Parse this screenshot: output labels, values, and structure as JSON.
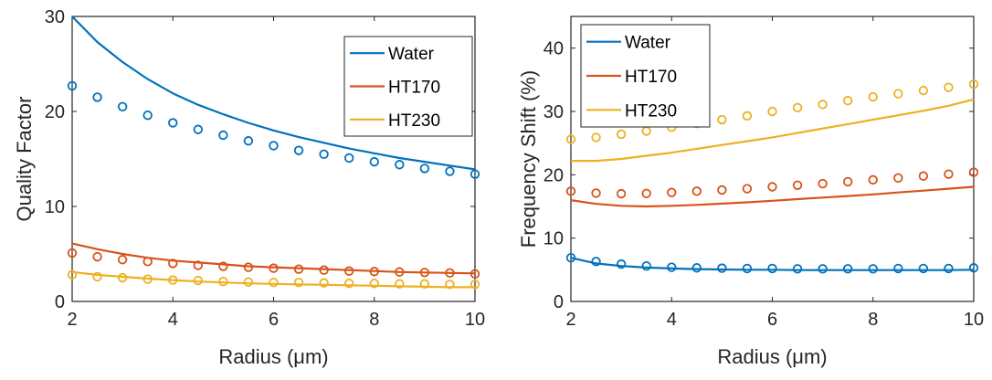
{
  "chart_data": [
    {
      "type": "line",
      "xlabel": "Radius (μm)",
      "ylabel": "Quality Factor",
      "xlim": [
        2,
        10
      ],
      "ylim": [
        0,
        30
      ],
      "xticks": [
        2,
        4,
        6,
        8,
        10
      ],
      "yticks": [
        0,
        10,
        20,
        30
      ],
      "grid": false,
      "legend": "top-right",
      "series": [
        {
          "name": "Water",
          "color": "#0072BD",
          "line_x": [
            2,
            2.5,
            3,
            3.5,
            4,
            4.5,
            5,
            5.5,
            6,
            6.5,
            7,
            7.5,
            8,
            8.5,
            9,
            9.5,
            10
          ],
          "line_y": [
            30,
            27.3,
            25.2,
            23.4,
            21.9,
            20.7,
            19.7,
            18.8,
            18.0,
            17.3,
            16.7,
            16.1,
            15.6,
            15.1,
            14.7,
            14.3,
            13.9
          ],
          "marker_x": [
            2,
            2.5,
            3,
            3.5,
            4,
            4.5,
            5,
            5.5,
            6,
            6.5,
            7,
            7.5,
            8,
            8.5,
            9,
            9.5,
            10
          ],
          "marker_y": [
            22.7,
            21.5,
            20.5,
            19.6,
            18.8,
            18.1,
            17.5,
            16.9,
            16.4,
            15.9,
            15.5,
            15.1,
            14.7,
            14.4,
            14.0,
            13.7,
            13.4
          ]
        },
        {
          "name": "HT170",
          "color": "#D95319",
          "line_x": [
            2,
            2.5,
            3,
            3.5,
            4,
            4.5,
            5,
            5.5,
            6,
            6.5,
            7,
            7.5,
            8,
            8.5,
            9,
            9.5,
            10
          ],
          "line_y": [
            6.1,
            5.5,
            5.0,
            4.6,
            4.3,
            4.1,
            3.9,
            3.7,
            3.6,
            3.5,
            3.4,
            3.3,
            3.2,
            3.1,
            3.05,
            3.0,
            2.95
          ],
          "marker_x": [
            2,
            2.5,
            3,
            3.5,
            4,
            4.5,
            5,
            5.5,
            6,
            6.5,
            7,
            7.5,
            8,
            8.5,
            9,
            9.5,
            10
          ],
          "marker_y": [
            5.1,
            4.7,
            4.4,
            4.2,
            4.0,
            3.8,
            3.7,
            3.6,
            3.5,
            3.4,
            3.3,
            3.2,
            3.15,
            3.1,
            3.05,
            3.0,
            2.9
          ]
        },
        {
          "name": "HT230",
          "color": "#EDB120",
          "line_x": [
            2,
            2.5,
            3,
            3.5,
            4,
            4.5,
            5,
            5.5,
            6,
            6.5,
            7,
            7.5,
            8,
            8.5,
            9,
            9.5,
            10
          ],
          "line_y": [
            3.1,
            2.8,
            2.6,
            2.4,
            2.25,
            2.1,
            2.0,
            1.9,
            1.85,
            1.8,
            1.75,
            1.7,
            1.65,
            1.6,
            1.55,
            1.5,
            1.5
          ],
          "marker_x": [
            2,
            2.5,
            3,
            3.5,
            4,
            4.5,
            5,
            5.5,
            6,
            6.5,
            7,
            7.5,
            8,
            8.5,
            9,
            9.5,
            10
          ],
          "marker_y": [
            2.8,
            2.6,
            2.5,
            2.35,
            2.25,
            2.2,
            2.1,
            2.05,
            2.0,
            2.0,
            1.95,
            1.9,
            1.9,
            1.85,
            1.85,
            1.8,
            1.8
          ]
        }
      ]
    },
    {
      "type": "line",
      "xlabel": "Radius (μm)",
      "ylabel": "Frequency Shift (%)",
      "xlim": [
        2,
        10
      ],
      "ylim": [
        0,
        45
      ],
      "xticks": [
        2,
        4,
        6,
        8,
        10
      ],
      "yticks": [
        0,
        10,
        20,
        30,
        40
      ],
      "grid": false,
      "legend": "top-left",
      "series": [
        {
          "name": "Water",
          "color": "#0072BD",
          "line_x": [
            2,
            2.5,
            3,
            3.5,
            4,
            4.5,
            5,
            5.5,
            6,
            6.5,
            7,
            7.5,
            8,
            8.5,
            9,
            9.5,
            10
          ],
          "line_y": [
            6.9,
            6.0,
            5.6,
            5.35,
            5.2,
            5.1,
            5.05,
            5.0,
            5.0,
            4.95,
            4.95,
            4.95,
            4.95,
            4.95,
            4.95,
            4.95,
            5.0
          ],
          "marker_x": [
            2,
            2.5,
            3,
            3.5,
            4,
            4.5,
            5,
            5.5,
            6,
            6.5,
            7,
            7.5,
            8,
            8.5,
            9,
            9.5,
            10
          ],
          "marker_y": [
            6.9,
            6.3,
            5.9,
            5.6,
            5.4,
            5.3,
            5.25,
            5.2,
            5.2,
            5.15,
            5.15,
            5.15,
            5.15,
            5.2,
            5.2,
            5.2,
            5.3
          ]
        },
        {
          "name": "HT170",
          "color": "#D95319",
          "line_x": [
            2,
            2.5,
            3,
            3.5,
            4,
            4.5,
            5,
            5.5,
            6,
            6.5,
            7,
            7.5,
            8,
            8.5,
            9,
            9.5,
            10
          ],
          "line_y": [
            16.0,
            15.4,
            15.1,
            15.0,
            15.1,
            15.25,
            15.45,
            15.65,
            15.9,
            16.15,
            16.4,
            16.65,
            16.9,
            17.2,
            17.5,
            17.8,
            18.1
          ],
          "marker_x": [
            2,
            2.5,
            3,
            3.5,
            4,
            4.5,
            5,
            5.5,
            6,
            6.5,
            7,
            7.5,
            8,
            8.5,
            9,
            9.5,
            10
          ],
          "marker_y": [
            17.4,
            17.1,
            17.0,
            17.05,
            17.2,
            17.4,
            17.6,
            17.8,
            18.1,
            18.35,
            18.6,
            18.9,
            19.2,
            19.5,
            19.8,
            20.1,
            20.4
          ]
        },
        {
          "name": "HT230",
          "color": "#EDB120",
          "line_x": [
            2,
            2.5,
            3,
            3.5,
            4,
            4.5,
            5,
            5.5,
            6,
            6.5,
            7,
            7.5,
            8,
            8.5,
            9,
            9.5,
            10
          ],
          "line_y": [
            22.2,
            22.2,
            22.5,
            23.0,
            23.5,
            24.1,
            24.7,
            25.3,
            25.9,
            26.6,
            27.3,
            28.0,
            28.7,
            29.4,
            30.1,
            30.9,
            31.9
          ],
          "marker_x": [
            2,
            2.5,
            3,
            3.5,
            4,
            4.5,
            5,
            5.5,
            6,
            6.5,
            7,
            7.5,
            8,
            8.5,
            9,
            9.5,
            10
          ],
          "marker_y": [
            25.6,
            25.9,
            26.4,
            26.9,
            27.5,
            28.1,
            28.7,
            29.3,
            30.0,
            30.6,
            31.1,
            31.7,
            32.3,
            32.8,
            33.3,
            33.8,
            34.3
          ]
        }
      ]
    }
  ]
}
